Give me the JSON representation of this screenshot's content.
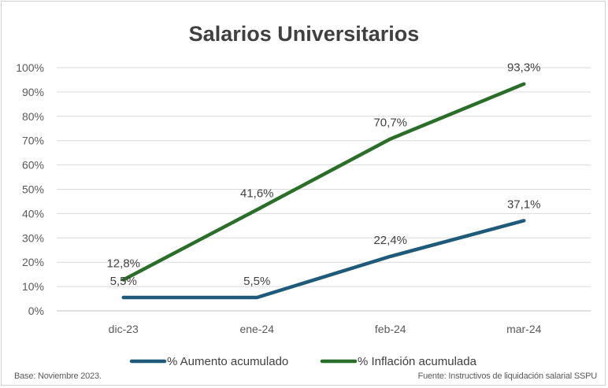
{
  "chart_data": {
    "type": "line",
    "title": "Salarios Universitarios",
    "categories": [
      "dic-23",
      "ene-24",
      "feb-24",
      "mar-24"
    ],
    "y_ticks": [
      "0%",
      "10%",
      "20%",
      "30%",
      "40%",
      "50%",
      "60%",
      "70%",
      "80%",
      "90%",
      "100%"
    ],
    "ylim": [
      0,
      100
    ],
    "grid": true,
    "legend_position": "bottom",
    "series": [
      {
        "name": "% Aumento acumulado",
        "color": "#1f5a7a",
        "values": [
          5.5,
          5.5,
          22.4,
          37.1
        ],
        "labels": [
          "5,5%",
          "5,5%",
          "22,4%",
          "37,1%"
        ]
      },
      {
        "name": "% Inflación acumulada",
        "color": "#2a6e2a",
        "values": [
          12.8,
          41.6,
          70.7,
          93.3
        ],
        "labels": [
          "12,8%",
          "41,6%",
          "70,7%",
          "93,3%"
        ]
      }
    ]
  },
  "notes": {
    "left": "Base: Noviembre 2023.",
    "right": "Fuente: Instructivos de liquidación salarial SSPU"
  }
}
